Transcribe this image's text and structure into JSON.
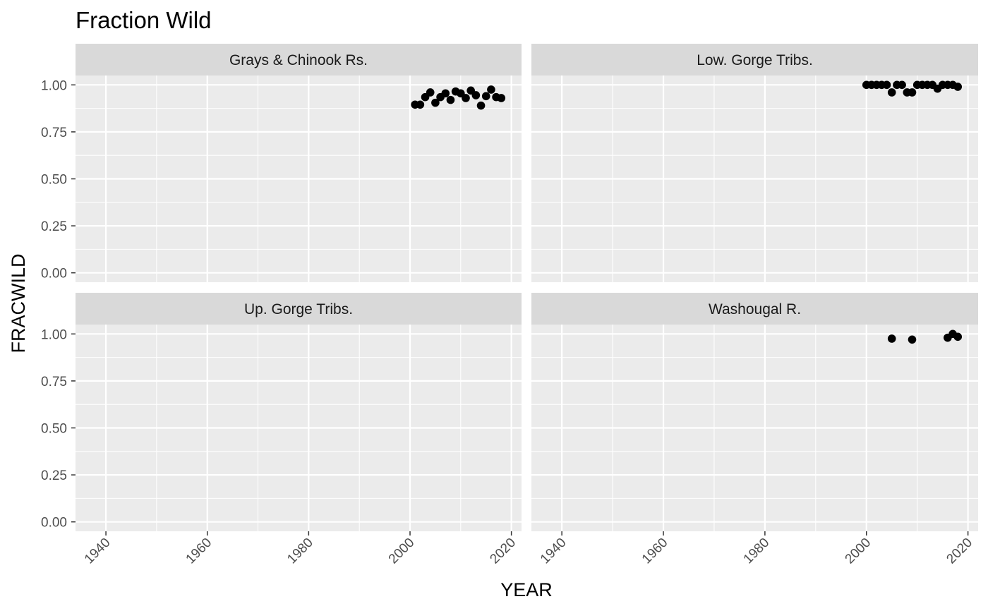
{
  "chart_data": {
    "type": "scatter",
    "title": "Fraction Wild",
    "xlabel": "YEAR",
    "ylabel": "FRACWILD",
    "xlim": [
      1934,
      2022
    ],
    "ylim": [
      -0.05,
      1.05
    ],
    "x_ticks": [
      1940,
      1960,
      1980,
      2000,
      2020
    ],
    "x_tick_labels": [
      "1940",
      "1960",
      "1980",
      "2000",
      "2020"
    ],
    "y_ticks": [
      0,
      0.25,
      0.5,
      0.75,
      1.0
    ],
    "y_tick_labels": [
      "0.00",
      "0.25",
      "0.50",
      "0.75",
      "1.00"
    ],
    "grid": true,
    "point_color": "#000000",
    "panel_background": "#ebebeb",
    "strip_background": "#d9d9d9",
    "panels": [
      {
        "name": "Grays & Chinook Rs.",
        "x": [
          2001,
          2002,
          2003,
          2004,
          2005,
          2006,
          2007,
          2008,
          2009,
          2010,
          2011,
          2012,
          2013,
          2014,
          2015,
          2016,
          2017,
          2018
        ],
        "y": [
          0.895,
          0.895,
          0.935,
          0.96,
          0.905,
          0.935,
          0.955,
          0.92,
          0.965,
          0.955,
          0.93,
          0.97,
          0.945,
          0.89,
          0.94,
          0.975,
          0.935,
          0.93
        ]
      },
      {
        "name": "Low. Gorge Tribs.",
        "x": [
          2000,
          2001,
          2002,
          2003,
          2004,
          2005,
          2006,
          2007,
          2008,
          2009,
          2010,
          2011,
          2012,
          2013,
          2014,
          2015,
          2016,
          2017,
          2018
        ],
        "y": [
          1.0,
          1.0,
          1.0,
          1.0,
          1.0,
          0.96,
          1.0,
          1.0,
          0.96,
          0.96,
          1.0,
          1.0,
          1.0,
          1.0,
          0.98,
          1.0,
          1.0,
          1.0,
          0.99
        ]
      },
      {
        "name": "Up. Gorge Tribs.",
        "x": [],
        "y": []
      },
      {
        "name": "Washougal R.",
        "x": [
          2005,
          2009,
          2016,
          2017,
          2018
        ],
        "y": [
          0.975,
          0.97,
          0.98,
          1.0,
          0.985
        ]
      }
    ]
  }
}
